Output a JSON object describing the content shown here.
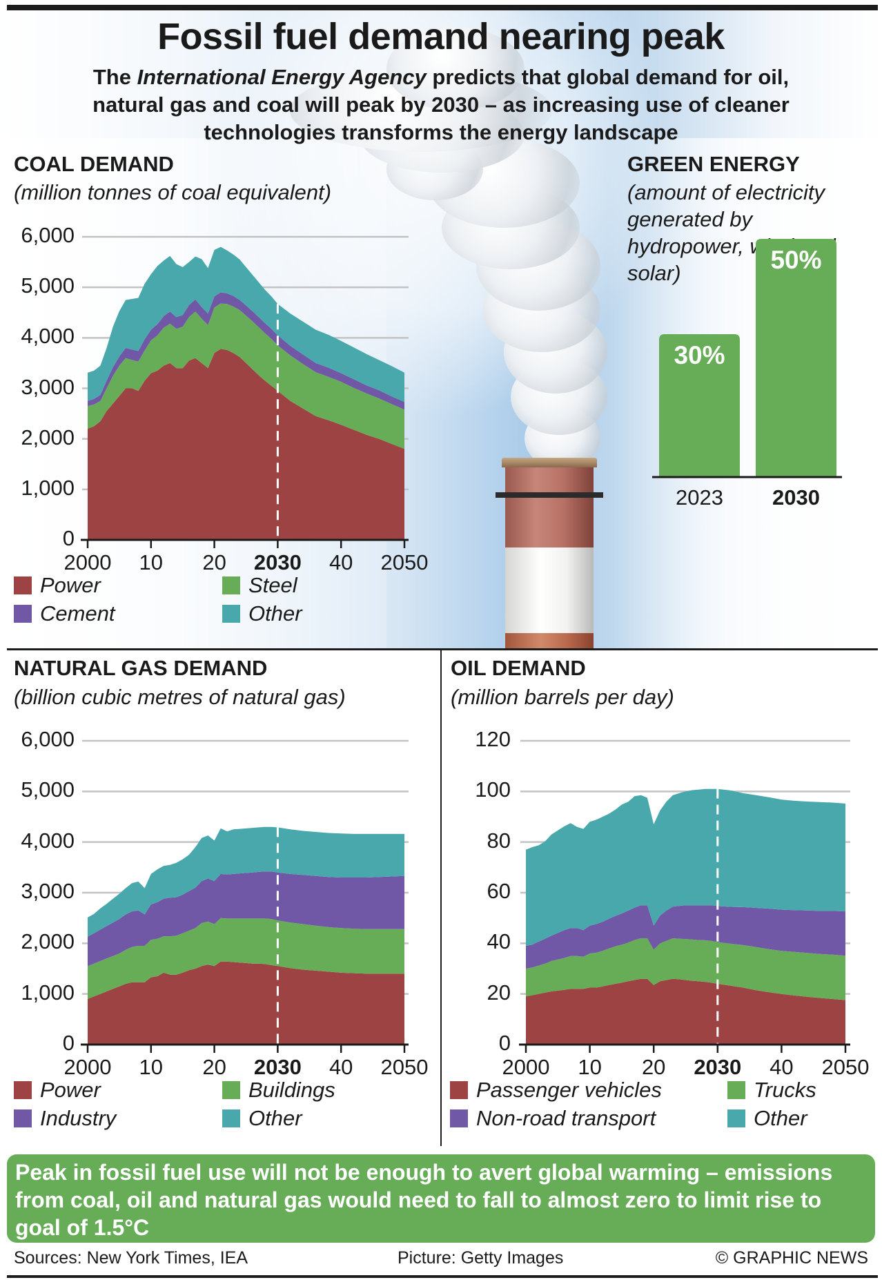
{
  "header": {
    "title": "Fossil fuel demand nearing peak",
    "subtitle_pre": "The ",
    "subtitle_italic": "International Energy Agency",
    "subtitle_post": " predicts that global demand for oil, natural gas and coal will peak by 2030 – as increasing use of cleaner technologies transforms the energy landscape"
  },
  "callout": "Peak in fossil fuel use will not be enough to avert global warming – emissions from coal, oil and natural gas would need to fall to almost zero to limit rise to goal of 1.5°C",
  "footer": {
    "sources": "Sources: New York Times, IEA",
    "picture": "Picture: Getty Images",
    "credit": "© GRAPHIC NEWS"
  },
  "colors": {
    "power": "#9e4343",
    "green": "#67ad57",
    "purple": "#7058a6",
    "teal": "#48a8ab"
  },
  "chart_data": [
    {
      "id": "coal",
      "type": "area",
      "stacked": true,
      "title": "COAL DEMAND",
      "ylabel": "(million tonnes of coal equivalent)",
      "ylim": [
        0,
        6000
      ],
      "yticks": [
        "0",
        "1,000",
        "2,000",
        "3,000",
        "4,000",
        "5,000",
        "6,000"
      ],
      "ytick_values": [
        0,
        1000,
        2000,
        3000,
        4000,
        5000,
        6000
      ],
      "xlim": [
        2000,
        2050
      ],
      "xticks": [
        "2000",
        "10",
        "20",
        "2030",
        "40",
        "2050"
      ],
      "xtick_values": [
        2000,
        2010,
        2020,
        2030,
        2040,
        2050
      ],
      "highlight_x": 2030,
      "grid": true,
      "x": [
        2000,
        2001,
        2002,
        2003,
        2004,
        2005,
        2006,
        2007,
        2008,
        2009,
        2010,
        2011,
        2012,
        2013,
        2014,
        2015,
        2016,
        2017,
        2018,
        2019,
        2020,
        2021,
        2022,
        2023,
        2024,
        2025,
        2026,
        2027,
        2028,
        2029,
        2030,
        2032,
        2034,
        2036,
        2038,
        2040,
        2042,
        2044,
        2046,
        2048,
        2050
      ],
      "series": [
        {
          "name": "Power",
          "color": "#9e4343",
          "values": [
            2200,
            2250,
            2350,
            2550,
            2700,
            2850,
            3000,
            3000,
            2950,
            3150,
            3300,
            3350,
            3450,
            3500,
            3400,
            3400,
            3550,
            3600,
            3500,
            3400,
            3700,
            3780,
            3760,
            3700,
            3620,
            3500,
            3380,
            3260,
            3150,
            3050,
            2950,
            2750,
            2600,
            2450,
            2370,
            2280,
            2180,
            2080,
            2000,
            1900,
            1800
          ]
        },
        {
          "name": "Steel",
          "color": "#67ad57",
          "values": [
            450,
            430,
            400,
            450,
            550,
            600,
            600,
            560,
            580,
            600,
            650,
            700,
            750,
            780,
            780,
            820,
            860,
            920,
            880,
            850,
            900,
            900,
            910,
            920,
            930,
            940,
            950,
            950,
            940,
            930,
            900,
            900,
            880,
            870,
            860,
            850,
            830,
            820,
            800,
            790,
            780
          ]
        },
        {
          "name": "Cement",
          "color": "#7058a6",
          "values": [
            100,
            110,
            120,
            150,
            170,
            180,
            200,
            210,
            210,
            220,
            210,
            220,
            230,
            240,
            230,
            230,
            240,
            240,
            230,
            230,
            220,
            220,
            210,
            210,
            200,
            200,
            200,
            200,
            200,
            200,
            200,
            190,
            190,
            180,
            180,
            170,
            170,
            160,
            160,
            150,
            150
          ]
        },
        {
          "name": "Other",
          "color": "#48a8ab",
          "values": [
            560,
            560,
            580,
            650,
            800,
            900,
            950,
            1000,
            1050,
            1100,
            1100,
            1150,
            1100,
            1100,
            1050,
            950,
            850,
            850,
            950,
            900,
            920,
            900,
            850,
            820,
            800,
            760,
            720,
            690,
            660,
            640,
            620,
            640,
            650,
            660,
            650,
            640,
            630,
            620,
            600,
            600,
            580
          ]
        }
      ],
      "legend": [
        {
          "label": "Power",
          "color": "#9e4343"
        },
        {
          "label": "Cement",
          "color": "#7058a6"
        },
        {
          "label": "Steel",
          "color": "#67ad57"
        },
        {
          "label": "Other",
          "color": "#48a8ab"
        }
      ]
    },
    {
      "id": "green",
      "type": "bar",
      "title": "GREEN ENERGY",
      "ylabel": "(amount of electricity generated by hydropower, wind and solar)",
      "categories": [
        "2023",
        "2030"
      ],
      "bold_category": "2030",
      "values": [
        30,
        50
      ],
      "value_labels": [
        "30%",
        "50%"
      ],
      "color": "#67ad57",
      "ylim": [
        0,
        60
      ]
    },
    {
      "id": "gas",
      "type": "area",
      "stacked": true,
      "title": "NATURAL GAS DEMAND",
      "ylabel": "(billion cubic metres of natural gas)",
      "ylim": [
        0,
        6000
      ],
      "yticks": [
        "0",
        "1,000",
        "2,000",
        "3,000",
        "4,000",
        "5,000",
        "6,000"
      ],
      "ytick_values": [
        0,
        1000,
        2000,
        3000,
        4000,
        5000,
        6000
      ],
      "xlim": [
        2000,
        2050
      ],
      "xticks": [
        "2000",
        "10",
        "20",
        "2030",
        "40",
        "2050"
      ],
      "xtick_values": [
        2000,
        2010,
        2020,
        2030,
        2040,
        2050
      ],
      "highlight_x": 2030,
      "grid": true,
      "x": [
        2000,
        2001,
        2002,
        2003,
        2004,
        2005,
        2006,
        2007,
        2008,
        2009,
        2010,
        2011,
        2012,
        2013,
        2014,
        2015,
        2016,
        2017,
        2018,
        2019,
        2020,
        2021,
        2022,
        2023,
        2024,
        2025,
        2026,
        2027,
        2028,
        2029,
        2030,
        2032,
        2034,
        2036,
        2038,
        2040,
        2042,
        2044,
        2046,
        2048,
        2050
      ],
      "series": [
        {
          "name": "Power",
          "color": "#9e4343",
          "values": [
            900,
            950,
            1000,
            1050,
            1100,
            1150,
            1200,
            1230,
            1230,
            1230,
            1330,
            1350,
            1420,
            1380,
            1380,
            1420,
            1470,
            1500,
            1550,
            1580,
            1550,
            1640,
            1640,
            1630,
            1620,
            1610,
            1600,
            1600,
            1590,
            1570,
            1550,
            1510,
            1480,
            1460,
            1440,
            1420,
            1410,
            1400,
            1400,
            1400,
            1400
          ]
        },
        {
          "name": "Buildings",
          "color": "#67ad57",
          "values": [
            650,
            650,
            650,
            650,
            650,
            650,
            670,
            700,
            720,
            720,
            740,
            740,
            720,
            760,
            770,
            780,
            780,
            800,
            850,
            850,
            830,
            860,
            850,
            860,
            870,
            880,
            890,
            890,
            900,
            910,
            900,
            900,
            900,
            890,
            880,
            880,
            880,
            880,
            880,
            880,
            880
          ]
        },
        {
          "name": "Industry",
          "color": "#7058a6",
          "values": [
            580,
            600,
            620,
            640,
            660,
            680,
            700,
            700,
            700,
            620,
            700,
            720,
            740,
            760,
            760,
            760,
            780,
            800,
            830,
            850,
            850,
            870,
            870,
            880,
            890,
            900,
            910,
            920,
            930,
            940,
            950,
            960,
            970,
            980,
            990,
            1000,
            1010,
            1020,
            1030,
            1040,
            1050
          ]
        },
        {
          "name": "Other",
          "color": "#48a8ab",
          "values": [
            380,
            380,
            420,
            440,
            470,
            500,
            520,
            560,
            570,
            520,
            600,
            650,
            650,
            650,
            680,
            700,
            720,
            800,
            850,
            850,
            800,
            900,
            850,
            880,
            880,
            880,
            880,
            880,
            880,
            880,
            890,
            880,
            870,
            870,
            870,
            870,
            860,
            860,
            850,
            840,
            830
          ]
        }
      ],
      "legend": [
        {
          "label": "Power",
          "color": "#9e4343"
        },
        {
          "label": "Industry",
          "color": "#7058a6"
        },
        {
          "label": "Buildings",
          "color": "#67ad57"
        },
        {
          "label": "Other",
          "color": "#48a8ab"
        }
      ]
    },
    {
      "id": "oil",
      "type": "area",
      "stacked": true,
      "title": "OIL DEMAND",
      "ylabel": "(million barrels per day)",
      "ylim": [
        0,
        120
      ],
      "yticks": [
        "0",
        "20",
        "40",
        "60",
        "80",
        "100",
        "120"
      ],
      "ytick_values": [
        0,
        20,
        40,
        60,
        80,
        100,
        120
      ],
      "xlim": [
        2000,
        2050
      ],
      "xticks": [
        "2000",
        "10",
        "20",
        "2030",
        "40",
        "2050"
      ],
      "xtick_values": [
        2000,
        2010,
        2020,
        2030,
        2040,
        2050
      ],
      "highlight_x": 2030,
      "grid": true,
      "x": [
        2000,
        2001,
        2002,
        2003,
        2004,
        2005,
        2006,
        2007,
        2008,
        2009,
        2010,
        2011,
        2012,
        2013,
        2014,
        2015,
        2016,
        2017,
        2018,
        2019,
        2020,
        2021,
        2022,
        2023,
        2024,
        2025,
        2026,
        2027,
        2028,
        2029,
        2030,
        2032,
        2034,
        2036,
        2038,
        2040,
        2042,
        2044,
        2046,
        2048,
        2050
      ],
      "series": [
        {
          "name": "Passenger vehicles",
          "color": "#9e4343",
          "values": [
            19,
            19.5,
            20,
            20.5,
            21,
            21.3,
            21.6,
            22,
            22,
            22,
            22.5,
            22.5,
            23,
            23.5,
            24,
            24.5,
            25,
            25.5,
            26,
            26,
            23.5,
            25,
            25.5,
            26,
            25.8,
            25.5,
            25.2,
            25,
            24.8,
            24.5,
            24,
            23.3,
            22.5,
            21.5,
            20.7,
            20,
            19.4,
            18.9,
            18.4,
            18,
            17.6
          ]
        },
        {
          "name": "Trucks",
          "color": "#67ad57",
          "values": [
            11,
            11,
            11.2,
            11.5,
            12,
            12.3,
            12.6,
            13,
            13,
            12.7,
            13.5,
            13.8,
            14,
            14.5,
            14.8,
            15,
            15.3,
            15.8,
            16,
            16,
            14,
            15,
            15.5,
            16,
            16,
            16.2,
            16.3,
            16.3,
            16.4,
            16.5,
            16.5,
            16.6,
            16.8,
            17,
            17,
            17,
            17.2,
            17.3,
            17.4,
            17.5,
            17.5
          ]
        },
        {
          "name": "Non-road transport",
          "color": "#7058a6",
          "values": [
            9,
            9,
            9.5,
            9.8,
            10,
            10.5,
            11,
            11,
            11,
            10.5,
            11,
            11.3,
            11.5,
            11.7,
            12,
            12.3,
            12.6,
            12.8,
            13,
            13,
            9.5,
            11,
            12,
            12.5,
            13,
            13.3,
            13.5,
            13.7,
            13.8,
            14,
            14.2,
            14.5,
            15,
            15.5,
            16,
            16.3,
            16.5,
            16.8,
            17,
            17.3,
            17.5
          ]
        },
        {
          "name": "Other",
          "color": "#48a8ab",
          "values": [
            38,
            38.5,
            38,
            38.5,
            40,
            40.5,
            41,
            41.5,
            40,
            40,
            41,
            41.2,
            41.5,
            41.5,
            42,
            43,
            43,
            44,
            43.5,
            42.5,
            40,
            41.5,
            43,
            44,
            44.5,
            45,
            45.5,
            45.7,
            46,
            46,
            46.3,
            46,
            45,
            44.5,
            44,
            43.5,
            43.2,
            43,
            43,
            42.8,
            42.6
          ]
        }
      ],
      "legend": [
        {
          "label": "Passenger vehicles",
          "color": "#9e4343"
        },
        {
          "label": "Non-road transport",
          "color": "#7058a6"
        },
        {
          "label": "Trucks",
          "color": "#67ad57"
        },
        {
          "label": "Other",
          "color": "#48a8ab"
        }
      ]
    }
  ]
}
